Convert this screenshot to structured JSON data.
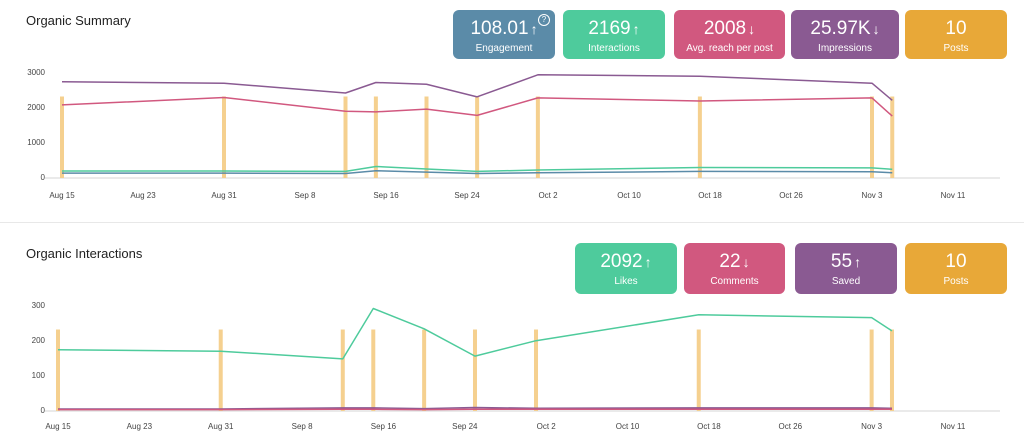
{
  "summary": {
    "title": "Organic Summary",
    "cards": [
      {
        "value": "108.01",
        "arrow": "↑",
        "label": "Engagement",
        "color": "#5b8ba8",
        "help": "?"
      },
      {
        "value": "2169",
        "arrow": "↑",
        "label": "Interactions",
        "color": "#4ecb9c"
      },
      {
        "value": "2008",
        "arrow": "↓",
        "label": "Avg. reach per post",
        "color": "#d1587f"
      },
      {
        "value": "25.97K",
        "arrow": "↓",
        "label": "Impressions",
        "color": "#8a5a92"
      },
      {
        "value": "10",
        "arrow": "",
        "label": "Posts",
        "color": "#e8a838"
      }
    ]
  },
  "interactions": {
    "title": "Organic Interactions",
    "cards": [
      {
        "value": "2092",
        "arrow": "↑",
        "label": "Likes",
        "color": "#4ecb9c"
      },
      {
        "value": "22",
        "arrow": "↓",
        "label": "Comments",
        "color": "#d1587f"
      },
      {
        "value": "55",
        "arrow": "↑",
        "label": "Saved",
        "color": "#8a5a92"
      },
      {
        "value": "10",
        "arrow": "",
        "label": "Posts",
        "color": "#e8a838"
      }
    ]
  },
  "chart_data": [
    {
      "type": "line",
      "title": "Organic Summary",
      "x_ticks": [
        "Aug 15",
        "Aug 23",
        "Aug 31",
        "Sep 8",
        "Sep 16",
        "Sep 24",
        "Oct 2",
        "Oct 10",
        "Oct 18",
        "Oct 26",
        "Nov 3",
        "Nov 11"
      ],
      "y_ticks": [
        "0",
        "1000",
        "2000",
        "3000"
      ],
      "ylim": [
        0,
        3000
      ],
      "bar_color": "#f5d08f",
      "posts": {
        "x": [
          15,
          31,
          43,
          46,
          51,
          56,
          62,
          78,
          95,
          97
        ],
        "y": [
          2300,
          2300,
          2300,
          2300,
          2300,
          2300,
          2300,
          2300,
          2300,
          2300
        ]
      },
      "series": [
        {
          "color": "#8a5a92",
          "x": [
            15,
            31,
            43,
            46,
            51,
            56,
            62,
            78,
            95,
            97
          ],
          "y": [
            2720,
            2680,
            2400,
            2700,
            2650,
            2290,
            2920,
            2880,
            2680,
            2190
          ]
        },
        {
          "color": "#d1587f",
          "x": [
            15,
            31,
            43,
            46,
            51,
            56,
            62,
            78,
            95,
            97
          ],
          "y": [
            2060,
            2270,
            1880,
            1860,
            1940,
            1760,
            2260,
            2170,
            2260,
            1740
          ]
        },
        {
          "color": "#4ecb9c",
          "x": [
            15,
            31,
            43,
            46,
            51,
            56,
            62,
            78,
            95,
            97
          ],
          "y": [
            170,
            170,
            160,
            300,
            230,
            160,
            200,
            270,
            260,
            220
          ]
        },
        {
          "color": "#5b8ba8",
          "x": [
            15,
            31,
            43,
            46,
            51,
            56,
            62,
            78,
            95,
            97
          ],
          "y": [
            110,
            110,
            100,
            180,
            140,
            100,
            120,
            160,
            150,
            120
          ]
        }
      ]
    },
    {
      "type": "line",
      "title": "Organic Interactions",
      "x_ticks": [
        "Aug 15",
        "Aug 23",
        "Aug 31",
        "Sep 8",
        "Sep 16",
        "Sep 24",
        "Oct 2",
        "Oct 10",
        "Oct 18",
        "Oct 26",
        "Nov 3",
        "Nov 11"
      ],
      "y_ticks": [
        "0",
        "100",
        "200",
        "300"
      ],
      "ylim": [
        0,
        300
      ],
      "bar_color": "#f5d08f",
      "posts": {
        "x": [
          15,
          31,
          43,
          46,
          51,
          56,
          62,
          78,
          95,
          97
        ],
        "y": [
          230,
          230,
          230,
          230,
          230,
          230,
          230,
          230,
          230,
          230
        ]
      },
      "series": [
        {
          "color": "#4ecb9c",
          "x": [
            15,
            31,
            43,
            46,
            51,
            56,
            62,
            78,
            95,
            97
          ],
          "y": [
            172,
            168,
            146,
            290,
            232,
            154,
            198,
            272,
            264,
            226
          ]
        },
        {
          "color": "#8a5a92",
          "x": [
            15,
            31,
            43,
            46,
            51,
            56,
            62,
            78,
            95,
            97
          ],
          "y": [
            3,
            3,
            6,
            6,
            4,
            7,
            5,
            6,
            6,
            5
          ]
        },
        {
          "color": "#d1587f",
          "x": [
            15,
            31,
            43,
            46,
            51,
            56,
            62,
            78,
            95,
            97
          ],
          "y": [
            1,
            1,
            2,
            2,
            1,
            2,
            2,
            2,
            2,
            2
          ]
        }
      ]
    }
  ]
}
